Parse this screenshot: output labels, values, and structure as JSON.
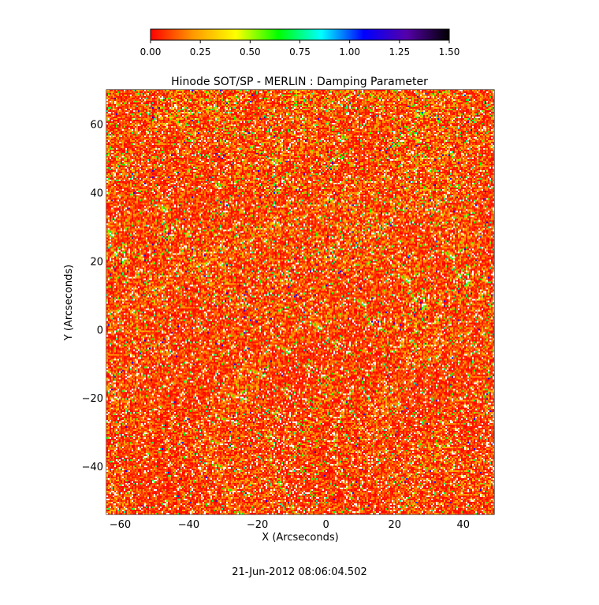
{
  "chart_data": {
    "type": "heatmap",
    "title": "Hinode SOT/SP - MERLIN : Damping Parameter",
    "xlabel": "X (Arcseconds)",
    "ylabel": "Y (Arcseconds)",
    "xlim": [
      -64,
      49
    ],
    "ylim": [
      -54,
      70
    ],
    "x_ticks": [
      -60,
      -40,
      -20,
      0,
      20,
      40
    ],
    "y_ticks": [
      -40,
      -20,
      0,
      20,
      40,
      60
    ],
    "x_tick_labels": [
      "−60",
      "−40",
      "−20",
      "0",
      "20",
      "40"
    ],
    "y_tick_labels": [
      "−40",
      "−20",
      "0",
      "20",
      "40",
      "60"
    ],
    "colorbar": {
      "range": [
        0.0,
        1.5
      ],
      "ticks": [
        0.0,
        0.25,
        0.5,
        0.75,
        1.0,
        1.25,
        1.5
      ],
      "tick_labels": [
        "0.00",
        "0.25",
        "0.50",
        "0.75",
        "1.00",
        "1.25",
        "1.50"
      ],
      "colormap": [
        "#ff0000",
        "#ff9900",
        "#ffff00",
        "#00ff00",
        "#00ffff",
        "#0000ff",
        "#5500aa",
        "#000000"
      ]
    },
    "value_distribution": {
      "dominant_range": [
        0.0,
        0.3
      ],
      "sparse_higher_values": [
        0.5,
        0.75
      ]
    },
    "grid": false,
    "timestamp": "21-Jun-2012 08:06:04.502"
  }
}
